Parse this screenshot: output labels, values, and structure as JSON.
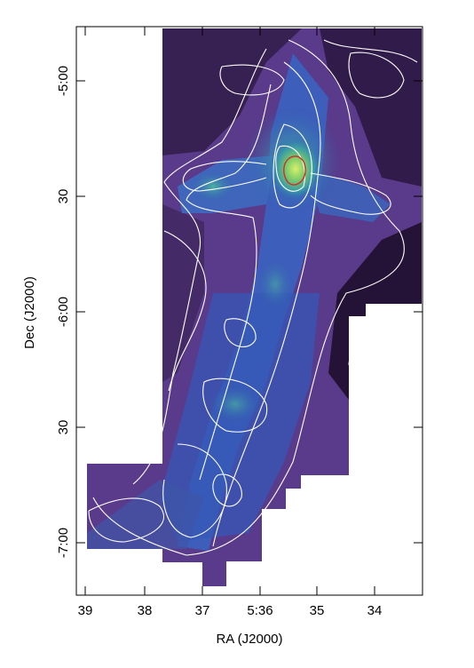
{
  "figure": {
    "xlabel": "RA (J2000)",
    "ylabel": "Dec (J2000)",
    "x_ticks": [
      "39",
      "38",
      "37",
      "5:36",
      "35",
      "34"
    ],
    "y_ticks": [
      "-5:00",
      "30",
      "-6:00",
      "30",
      "-7:00"
    ]
  },
  "colors": {
    "background": "#ffffff",
    "emission_low": "#2a0f3a",
    "emission_mid": "#6a3fa0",
    "emission_blue": "#2f5fb5",
    "emission_teal": "#3ea6a0",
    "emission_peak": "#b8e05a",
    "contour": "#ffffff",
    "peak_contour": "#d42a2a"
  }
}
